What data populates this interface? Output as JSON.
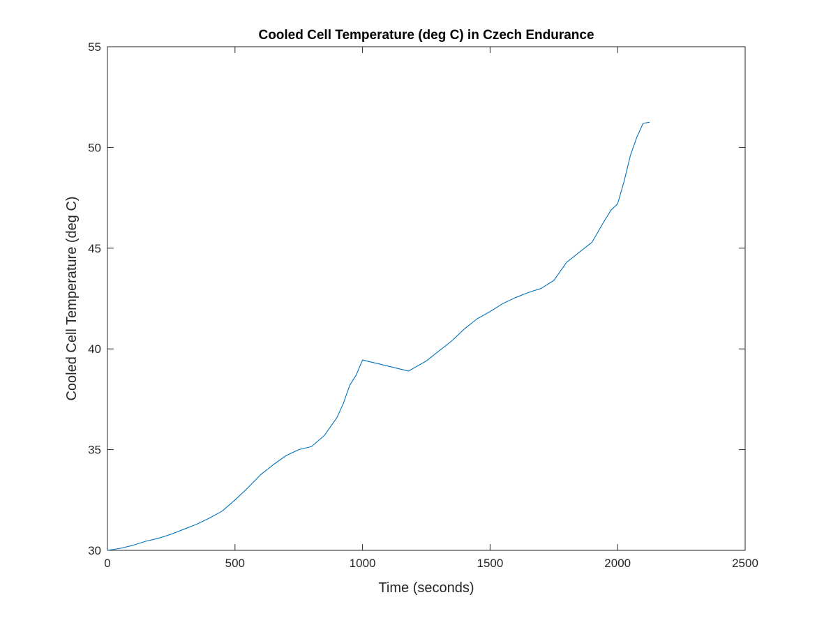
{
  "chart_data": {
    "type": "line",
    "title": "Cooled Cell Temperature (deg C) in Czech Endurance",
    "xlabel": "Time (seconds)",
    "ylabel": "Cooled Cell Temperature (deg C)",
    "xlim": [
      0,
      2500
    ],
    "ylim": [
      30,
      55
    ],
    "xticks": [
      0,
      500,
      1000,
      1500,
      2000,
      2500
    ],
    "yticks": [
      30,
      35,
      40,
      45,
      50,
      55
    ],
    "grid": false,
    "line_color": "#0072BD",
    "series": [
      {
        "x": [
          0,
          50,
          100,
          150,
          200,
          250,
          300,
          350,
          400,
          450,
          500,
          550,
          600,
          650,
          700,
          750,
          800,
          850,
          900,
          925,
          950,
          975,
          1000,
          1180,
          1250,
          1300,
          1350,
          1400,
          1450,
          1500,
          1550,
          1600,
          1650,
          1700,
          1750,
          1800,
          1850,
          1900,
          1950,
          1975,
          2000,
          2025,
          2050,
          2075,
          2100,
          2125
        ],
        "y": [
          30.0,
          30.1,
          30.25,
          30.45,
          30.6,
          30.8,
          31.05,
          31.3,
          31.6,
          31.95,
          32.5,
          33.1,
          33.75,
          34.25,
          34.7,
          35.0,
          35.15,
          35.7,
          36.6,
          37.3,
          38.2,
          38.7,
          39.45,
          38.9,
          39.4,
          39.9,
          40.4,
          41.0,
          41.5,
          41.85,
          42.25,
          42.55,
          42.8,
          43.0,
          43.4,
          44.3,
          44.8,
          45.3,
          46.4,
          46.9,
          47.2,
          48.3,
          49.6,
          50.5,
          51.2,
          51.25
        ]
      }
    ]
  }
}
